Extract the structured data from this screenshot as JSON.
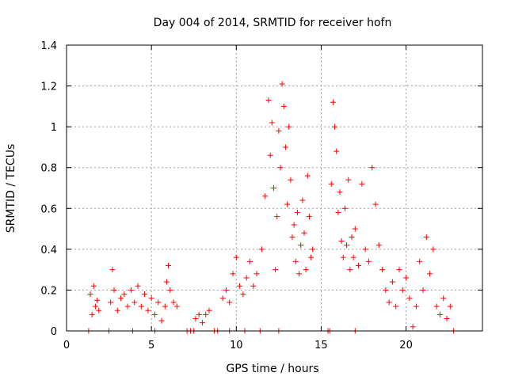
{
  "chart_data": {
    "type": "scatter",
    "title": "Day 004 of 2014, SRMTID for receiver hofn",
    "xlabel": "GPS time / hours",
    "ylabel": "SRMTID / TECUs",
    "xlim": [
      0,
      24.5
    ],
    "ylim": [
      0,
      1.4
    ],
    "xticks": [
      0,
      5,
      10,
      15,
      20
    ],
    "xtick_labels": [
      "0",
      "5",
      "10",
      "15",
      "20"
    ],
    "yticks": [
      0,
      0.2,
      0.4,
      0.6,
      0.8,
      1.0,
      1.2,
      1.4
    ],
    "ytick_labels": [
      "0",
      "0.2",
      "0.4",
      "0.6",
      "0.8",
      "1",
      "1.2",
      "1.4"
    ],
    "grid": true,
    "marker": "+",
    "color": "#ff0000",
    "series": [
      {
        "name": "SRMTID",
        "points": [
          [
            1.4,
            0.18
          ],
          [
            1.5,
            0.08
          ],
          [
            1.6,
            0.22
          ],
          [
            1.7,
            0.12
          ],
          [
            1.8,
            0.15
          ],
          [
            1.9,
            0.1
          ],
          [
            2.6,
            0.14
          ],
          [
            2.7,
            0.3
          ],
          [
            2.8,
            0.2
          ],
          [
            3.0,
            0.1
          ],
          [
            3.2,
            0.16
          ],
          [
            3.4,
            0.18
          ],
          [
            3.6,
            0.12
          ],
          [
            3.8,
            0.2
          ],
          [
            4.0,
            0.14
          ],
          [
            4.2,
            0.22
          ],
          [
            4.4,
            0.12
          ],
          [
            4.6,
            0.18
          ],
          [
            4.8,
            0.1
          ],
          [
            5.0,
            0.16
          ],
          [
            5.2,
            0.08
          ],
          [
            5.4,
            0.14
          ],
          [
            5.6,
            0.05
          ],
          [
            5.8,
            0.12
          ],
          [
            5.9,
            0.24
          ],
          [
            6.0,
            0.32
          ],
          [
            6.1,
            0.2
          ],
          [
            6.3,
            0.14
          ],
          [
            6.5,
            0.12
          ],
          [
            7.6,
            0.06
          ],
          [
            7.8,
            0.08
          ],
          [
            8.0,
            0.04
          ],
          [
            8.2,
            0.08
          ],
          [
            8.4,
            0.1
          ],
          [
            9.2,
            0.16
          ],
          [
            9.4,
            0.2
          ],
          [
            9.6,
            0.14
          ],
          [
            9.8,
            0.28
          ],
          [
            10.0,
            0.36
          ],
          [
            10.2,
            0.22
          ],
          [
            10.4,
            0.18
          ],
          [
            10.6,
            0.26
          ],
          [
            10.8,
            0.34
          ],
          [
            11.0,
            0.22
          ],
          [
            11.2,
            0.28
          ],
          [
            11.5,
            0.4
          ],
          [
            11.7,
            0.66
          ],
          [
            11.9,
            1.13
          ],
          [
            12.0,
            0.86
          ],
          [
            12.1,
            1.02
          ],
          [
            12.2,
            0.7
          ],
          [
            12.3,
            0.3
          ],
          [
            12.4,
            0.56
          ],
          [
            12.5,
            0.98
          ],
          [
            12.6,
            0.8
          ],
          [
            12.7,
            1.21
          ],
          [
            12.8,
            1.1
          ],
          [
            12.9,
            0.9
          ],
          [
            13.0,
            0.62
          ],
          [
            13.1,
            1.0
          ],
          [
            13.2,
            0.74
          ],
          [
            13.3,
            0.46
          ],
          [
            13.4,
            0.52
          ],
          [
            13.5,
            0.34
          ],
          [
            13.6,
            0.58
          ],
          [
            13.7,
            0.28
          ],
          [
            13.8,
            0.42
          ],
          [
            13.9,
            0.64
          ],
          [
            14.0,
            0.48
          ],
          [
            14.1,
            0.3
          ],
          [
            14.2,
            0.76
          ],
          [
            14.3,
            0.56
          ],
          [
            14.4,
            0.36
          ],
          [
            14.5,
            0.4
          ],
          [
            15.6,
            0.72
          ],
          [
            15.7,
            1.12
          ],
          [
            15.8,
            1.0
          ],
          [
            15.9,
            0.88
          ],
          [
            16.0,
            0.58
          ],
          [
            16.1,
            0.68
          ],
          [
            16.2,
            0.44
          ],
          [
            16.3,
            0.36
          ],
          [
            16.4,
            0.6
          ],
          [
            16.5,
            0.42
          ],
          [
            16.6,
            0.74
          ],
          [
            16.7,
            0.3
          ],
          [
            16.8,
            0.46
          ],
          [
            16.9,
            0.36
          ],
          [
            17.0,
            0.5
          ],
          [
            17.2,
            0.32
          ],
          [
            17.4,
            0.72
          ],
          [
            17.6,
            0.4
          ],
          [
            17.8,
            0.34
          ],
          [
            18.0,
            0.8
          ],
          [
            18.2,
            0.62
          ],
          [
            18.4,
            0.42
          ],
          [
            18.6,
            0.3
          ],
          [
            18.8,
            0.2
          ],
          [
            19.0,
            0.14
          ],
          [
            19.2,
            0.24
          ],
          [
            19.4,
            0.12
          ],
          [
            19.6,
            0.3
          ],
          [
            19.8,
            0.2
          ],
          [
            20.0,
            0.26
          ],
          [
            20.2,
            0.16
          ],
          [
            20.4,
            0.02
          ],
          [
            20.6,
            0.12
          ],
          [
            20.8,
            0.34
          ],
          [
            21.0,
            0.2
          ],
          [
            21.2,
            0.46
          ],
          [
            21.4,
            0.28
          ],
          [
            21.6,
            0.4
          ],
          [
            21.8,
            0.12
          ],
          [
            22.0,
            0.08
          ],
          [
            22.2,
            0.16
          ],
          [
            22.4,
            0.06
          ],
          [
            22.6,
            0.12
          ]
        ]
      }
    ],
    "zero_points_x": [
      1.3,
      2.5,
      3.9,
      5.2,
      7.1,
      7.3,
      7.5,
      8.7,
      8.9,
      9.6,
      10.5,
      11.4,
      12.5,
      15.4,
      15.5,
      17.0,
      22.8
    ]
  }
}
